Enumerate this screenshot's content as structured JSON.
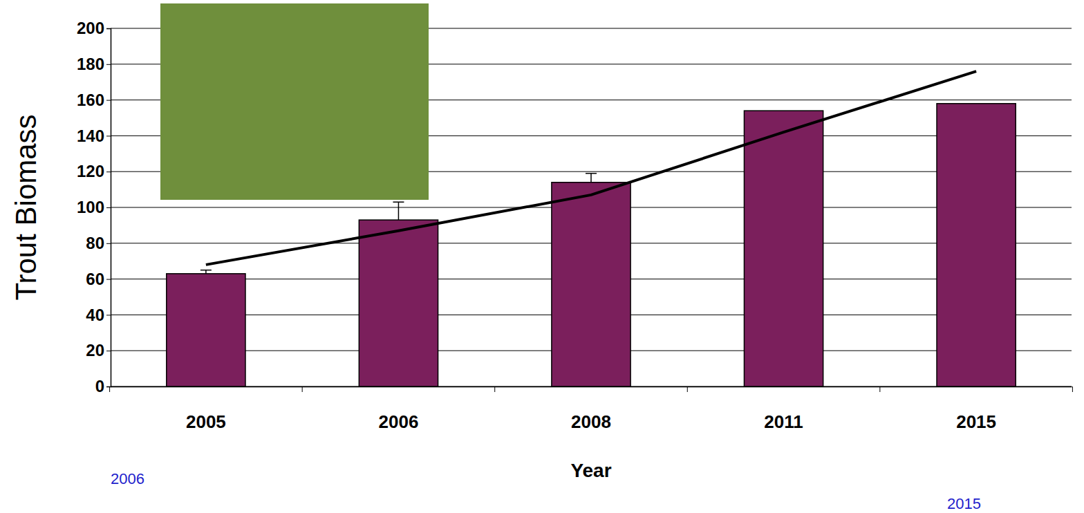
{
  "chart_data": {
    "type": "bar",
    "x_label": "Year",
    "y_label": "Trout Biomass",
    "categories": [
      "2005",
      "2006",
      "2008",
      "2011",
      "2015"
    ],
    "series": [
      {
        "type": "bar",
        "color": "#7b1f5c",
        "values": [
          63,
          93,
          114,
          154,
          158
        ],
        "errors": [
          2,
          10,
          5,
          null,
          null
        ]
      },
      {
        "type": "line",
        "color": "#000000",
        "line_style": "solid",
        "values": [
          68,
          87,
          107,
          142,
          176
        ]
      }
    ],
    "ylim": [
      0,
      200
    ],
    "yticks": [
      0,
      20,
      40,
      60,
      80,
      100,
      120,
      140,
      160,
      180,
      200
    ],
    "grid": true,
    "annotations": [
      {
        "text": "2006"
      },
      {
        "text": "2015"
      }
    ]
  }
}
